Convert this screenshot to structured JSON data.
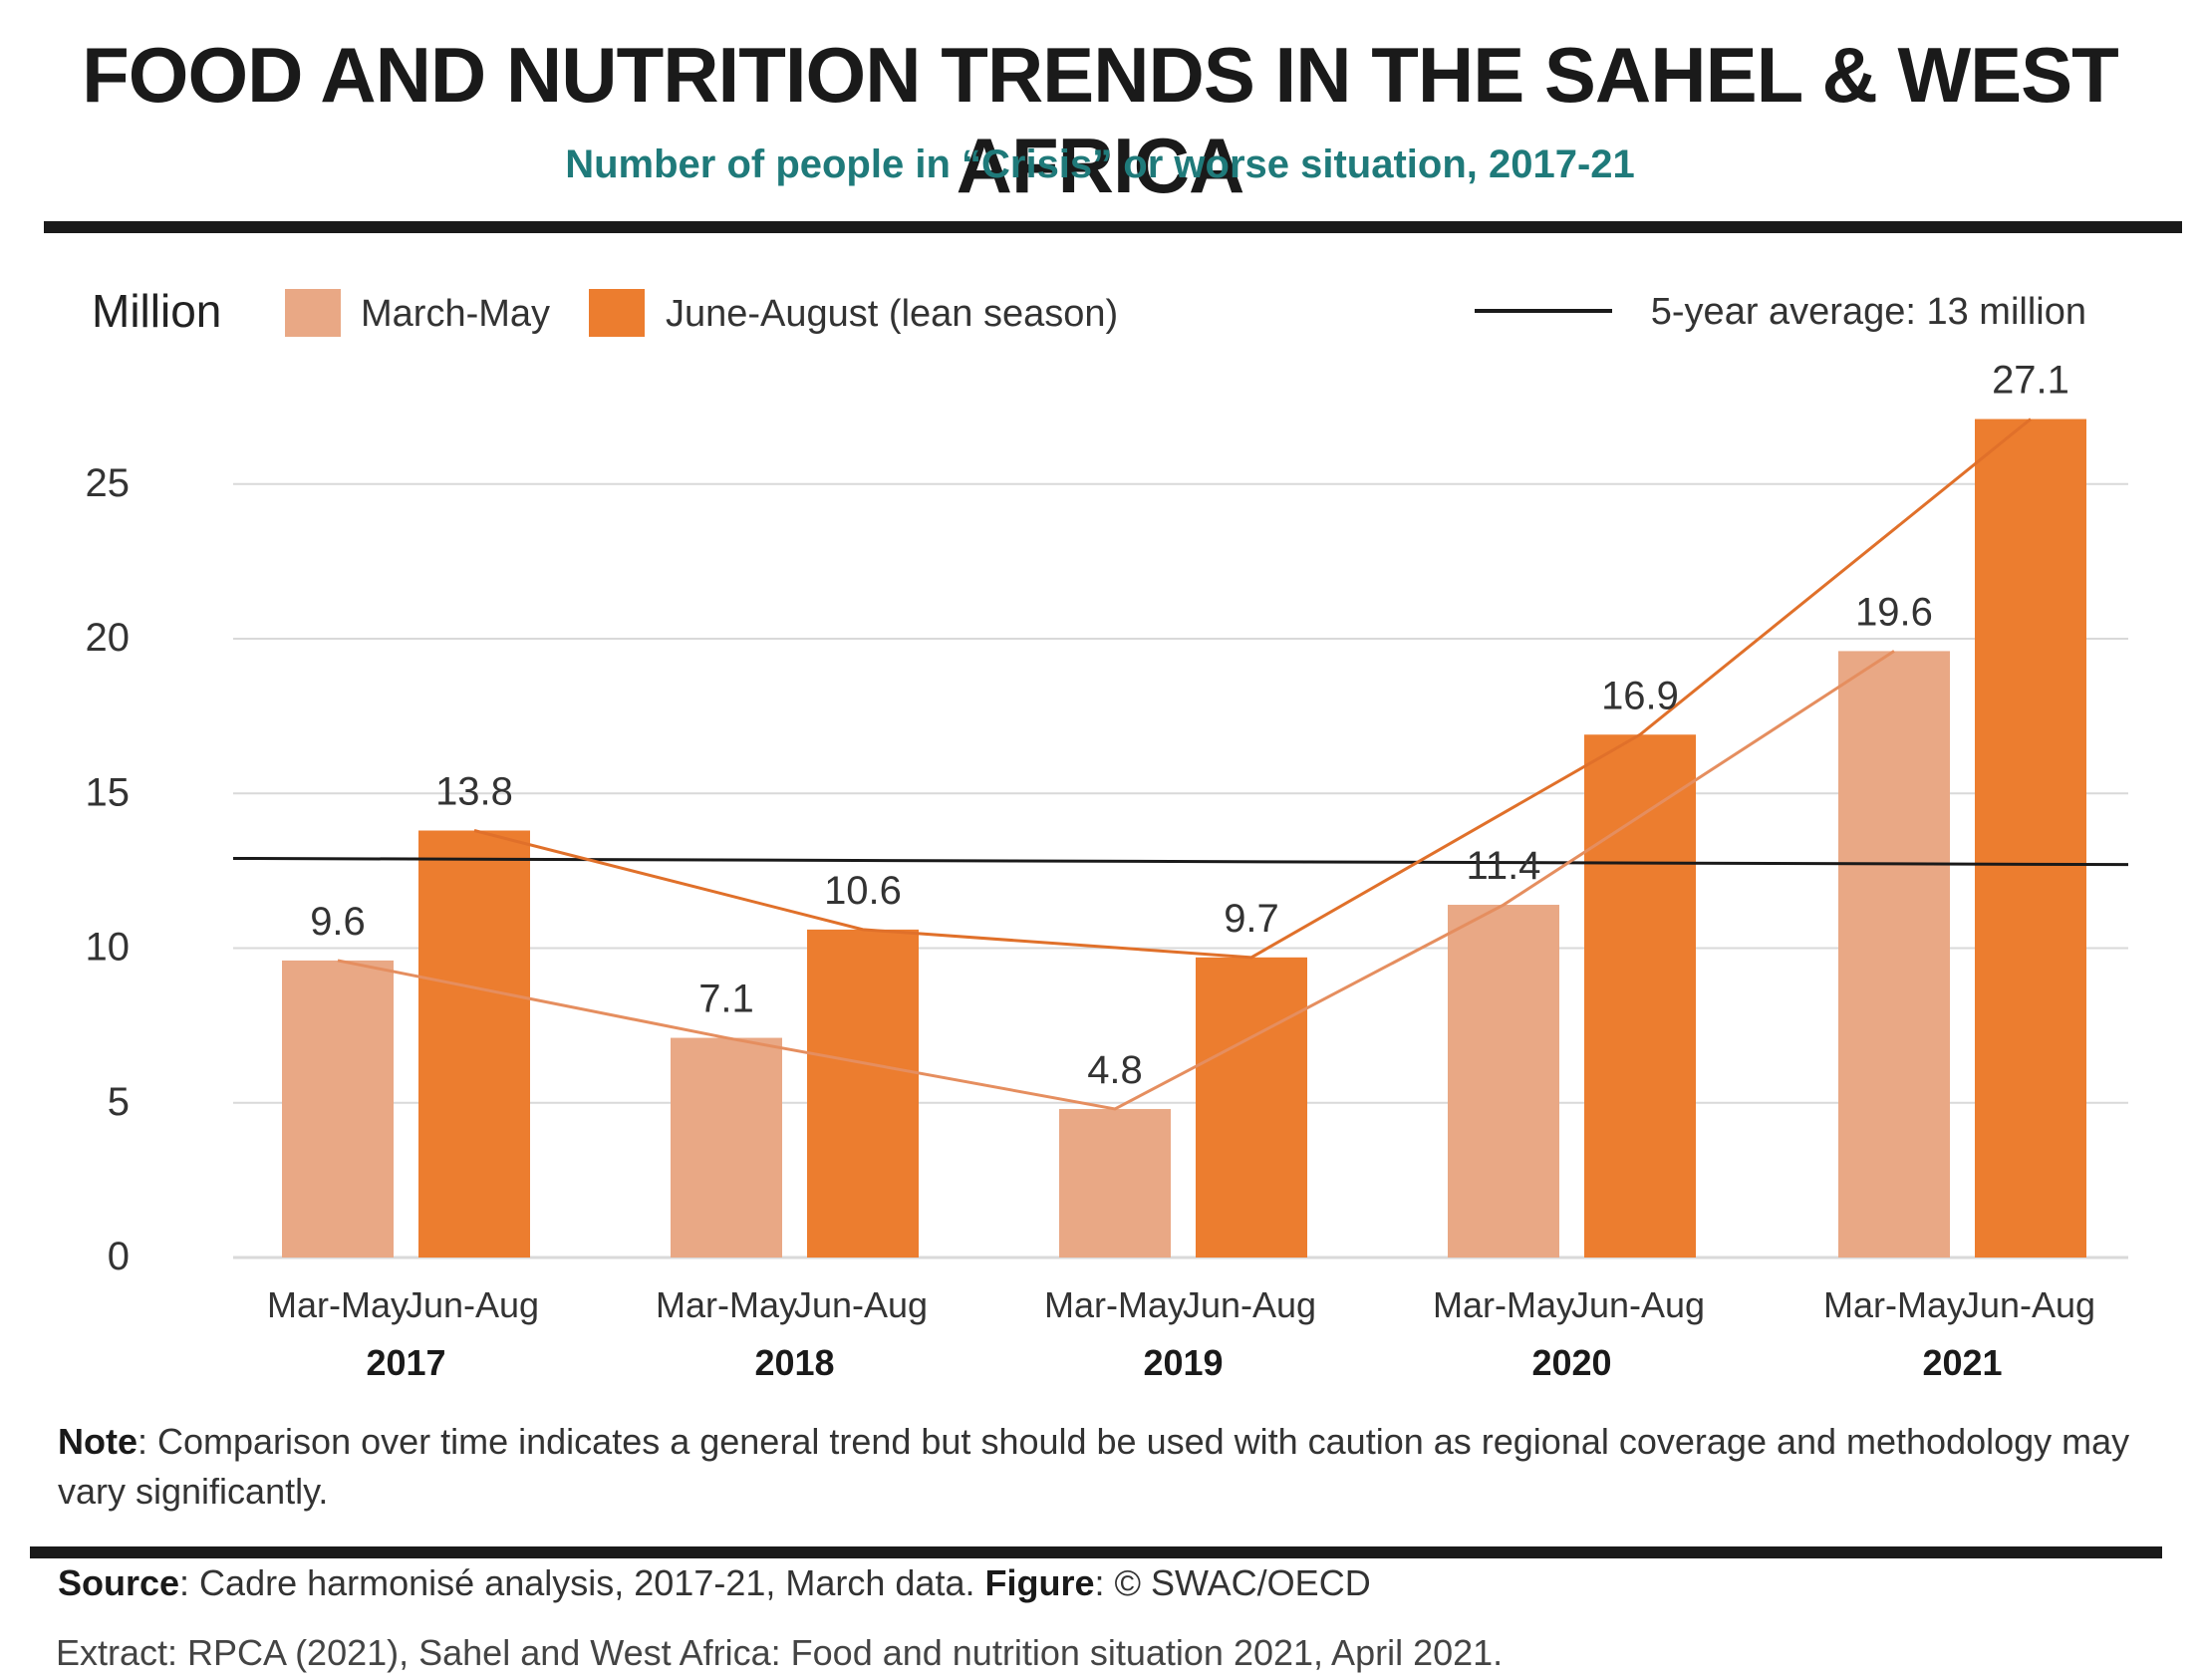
{
  "title": "FOOD AND NUTRITION TRENDS IN THE SAHEL & WEST AFRICA",
  "subtitle": "Number of people in “Crisis” or worse situation, 2017-21",
  "note": {
    "label": "Note",
    "text": ": Comparison over time indicates a general trend but should be used with caution as regional coverage and methodology may vary significantly."
  },
  "source": {
    "label": "Source",
    "text": ": Cadre harmonisé analysis, 2017-21, March data. ",
    "figure_label": "Figure",
    "figure_text": ": © SWAC/OECD"
  },
  "extract": "Extract: RPCA (2021), Sahel and West Africa: Food and nutrition situation 2021, April 2021.",
  "colors": {
    "march_may": "#E9A885",
    "june_aug": "#EC7D2F",
    "march_line": "#E58E5F",
    "june_line": "#E0702A",
    "average_line": "#1a1a1a",
    "grid": "#d9d9d9",
    "subtitle": "#1f7a7a"
  },
  "chart_data": {
    "type": "bar",
    "ylabel": "Million",
    "ylim": [
      0,
      27.1
    ],
    "yticks": [
      0,
      5,
      10,
      15,
      20,
      25
    ],
    "grid": true,
    "legend_position": "top",
    "categories": [
      "2017",
      "2018",
      "2019",
      "2020",
      "2021"
    ],
    "tick_labels": [
      "Mar-May",
      "Jun-Aug"
    ],
    "series": [
      {
        "name": "March-May",
        "values": [
          9.6,
          7.1,
          4.8,
          11.4,
          19.6
        ]
      },
      {
        "name": "June-August (lean season)",
        "values": [
          13.8,
          10.6,
          9.7,
          16.9,
          27.1
        ]
      }
    ],
    "reference_line": {
      "label": "5-year average: 13 million",
      "value": 12.8
    }
  }
}
